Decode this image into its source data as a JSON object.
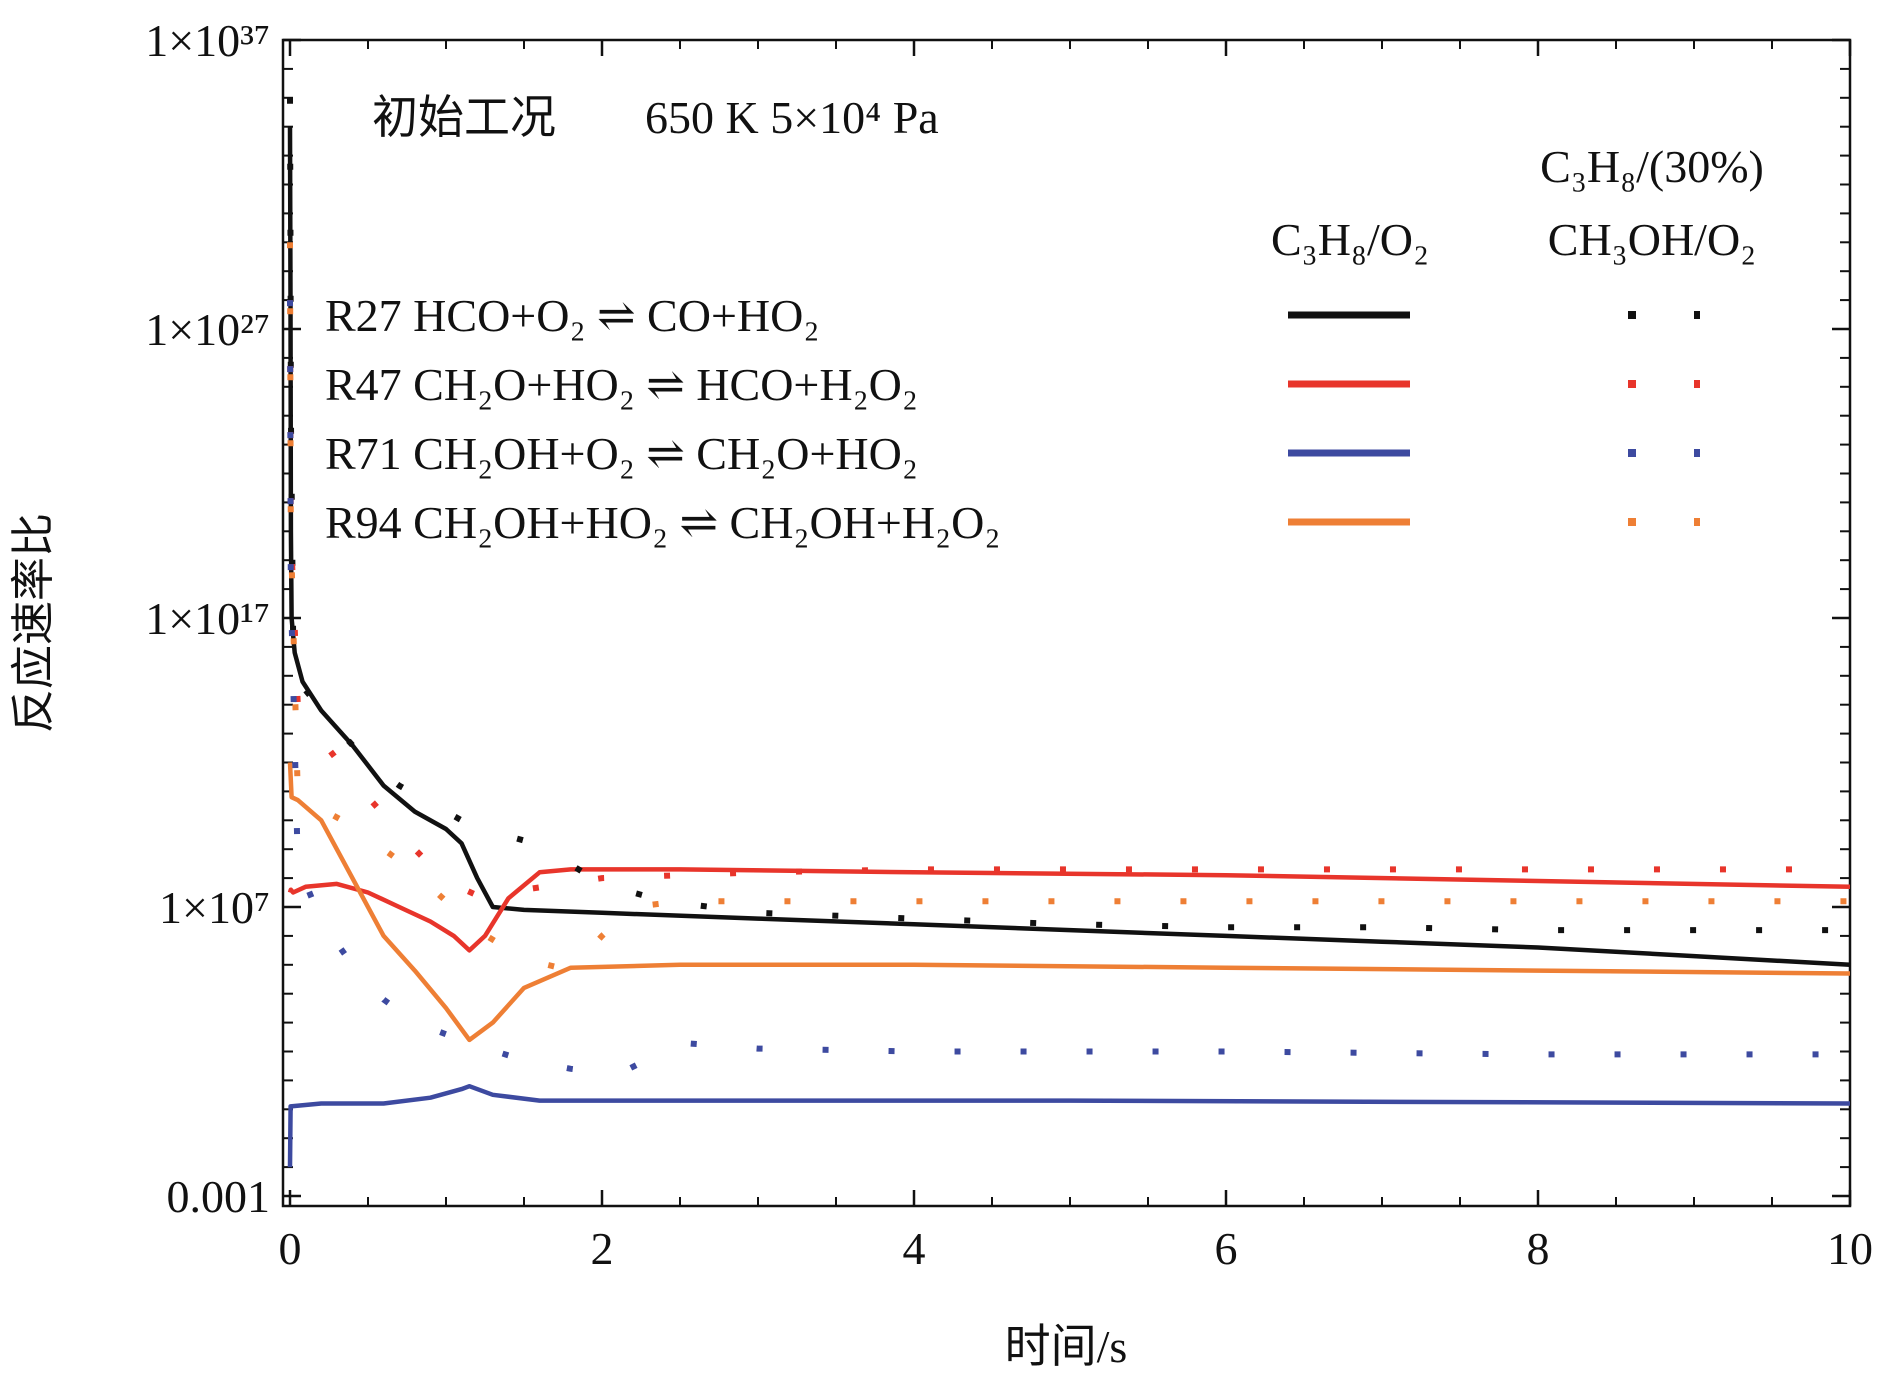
{
  "chart_data": {
    "type": "line",
    "title": "初始工况",
    "condition": "650 K  5×10⁴ Pa",
    "xlabel": "时间/s",
    "ylabel": "反应速率比",
    "xlim": [
      0,
      10
    ],
    "ylog10": [
      -3,
      37
    ],
    "xticks": [
      "0",
      "2",
      "4",
      "6",
      "8",
      "10"
    ],
    "yticks": [
      {
        "exp": 37,
        "label": "1×10³⁷"
      },
      {
        "exp": 27,
        "label": "1×10²⁷"
      },
      {
        "exp": 17,
        "label": "1×10¹⁷"
      },
      {
        "exp": 7,
        "label": "1×10⁷"
      },
      {
        "exp": -3,
        "label": "0.001"
      }
    ],
    "legend_header_a": "C₃H₈/O₂",
    "legend_header_b1": "C₃H₈/(30%)",
    "legend_header_b2": "CH₃OH/O₂",
    "reactions": [
      {
        "id": "R27",
        "label": "R27 HCO+O₂ ⇌ CO+HO₂",
        "color": "#111111"
      },
      {
        "id": "R47",
        "label": "R47 CH₂O+HO₂ ⇌ HCO+H₂O₂",
        "color": "#e8352b"
      },
      {
        "id": "R71",
        "label": "R71 CH₂OH+O₂ ⇌ CH₂O+HO₂",
        "color": "#3d4aa0"
      },
      {
        "id": "R94",
        "label": "R94 CH₂OH+HO₂ ⇌ CH₂OH+H₂O₂",
        "color": "#ee7f35"
      }
    ],
    "series": [
      {
        "name": "R27 C3H8/O2",
        "reaction": "R27",
        "style": "solid",
        "x": [
          0,
          0.003,
          0.006,
          0.01,
          0.03,
          0.08,
          0.2,
          0.4,
          0.6,
          0.8,
          1.0,
          1.1,
          1.2,
          1.3,
          1.5,
          2,
          3,
          4,
          5,
          6,
          7,
          8,
          9,
          10
        ],
        "y": [
          34,
          28,
          20,
          17,
          15.8,
          14.8,
          13.8,
          12.6,
          11.2,
          10.3,
          9.7,
          9.2,
          8.0,
          7.0,
          6.9,
          6.8,
          6.6,
          6.4,
          6.2,
          6.0,
          5.8,
          5.6,
          5.3,
          5.0
        ]
      },
      {
        "name": "R47 C3H8/O2",
        "reaction": "R47",
        "style": "solid",
        "x": [
          0,
          0.005,
          0.02,
          0.1,
          0.3,
          0.5,
          0.7,
          0.9,
          1.05,
          1.15,
          1.25,
          1.4,
          1.6,
          1.8,
          2.5,
          4,
          6,
          8,
          10
        ],
        "y": [
          7.5,
          7.6,
          7.5,
          7.7,
          7.8,
          7.5,
          7.0,
          6.5,
          6.0,
          5.5,
          6.0,
          7.3,
          8.2,
          8.3,
          8.3,
          8.2,
          8.1,
          7.9,
          7.7
        ]
      },
      {
        "name": "R71 C3H8/O2",
        "reaction": "R71",
        "style": "solid",
        "x": [
          0,
          0.004,
          0.2,
          0.6,
          0.9,
          1.1,
          1.15,
          1.3,
          1.6,
          2,
          5,
          10
        ],
        "y": [
          -2,
          0.1,
          0.2,
          0.2,
          0.4,
          0.7,
          0.8,
          0.5,
          0.3,
          0.3,
          0.3,
          0.2
        ]
      },
      {
        "name": "R94 C3H8/O2",
        "reaction": "R94",
        "style": "solid",
        "x": [
          0,
          0.01,
          0.05,
          0.2,
          0.4,
          0.6,
          0.8,
          1.0,
          1.15,
          1.3,
          1.5,
          1.8,
          2.5,
          4,
          6,
          8,
          10
        ],
        "y": [
          12,
          10.8,
          10.7,
          10.0,
          8.0,
          6.0,
          4.8,
          3.5,
          2.4,
          3.0,
          4.2,
          4.9,
          5.0,
          5.0,
          4.9,
          4.8,
          4.7
        ]
      },
      {
        "name": "R27 C3H8/(30%)CH3OH/O2",
        "reaction": "R27",
        "style": "dotted",
        "x": [
          0,
          0.003,
          0.006,
          0.02,
          0.1,
          0.3,
          0.5,
          0.7,
          0.9,
          1.1,
          1.3,
          1.5,
          1.7,
          2.0,
          2.4,
          3,
          4,
          5,
          6,
          7,
          8,
          9,
          10
        ],
        "y": [
          35,
          30,
          24,
          16.5,
          14.5,
          13.2,
          12.0,
          11.2,
          10.6,
          10.0,
          9.6,
          9.3,
          8.8,
          7.8,
          7.2,
          6.8,
          6.6,
          6.4,
          6.3,
          6.3,
          6.2,
          6.2,
          6.2
        ]
      },
      {
        "name": "R47 C3H8/(30%)CH3OH/O2",
        "reaction": "R47",
        "style": "dotted",
        "x": [
          0,
          0.005,
          0.05,
          0.2,
          0.4,
          0.6,
          0.8,
          1.0,
          1.2,
          1.5,
          2,
          3,
          4,
          6,
          8,
          10
        ],
        "y": [
          28,
          20,
          14.0,
          12.8,
          11.4,
          10.2,
          9.0,
          7.9,
          7.4,
          7.6,
          8.0,
          8.2,
          8.3,
          8.3,
          8.3,
          8.3
        ]
      },
      {
        "name": "R71 C3H8/(30%)CH3OH/O2",
        "reaction": "R71",
        "style": "dotted",
        "x": [
          0,
          0.005,
          0.05,
          0.2,
          0.4,
          0.6,
          0.8,
          1.0,
          1.2,
          1.5,
          1.8,
          2.1,
          2.5,
          3,
          4,
          6,
          8,
          10
        ],
        "y": [
          28,
          18,
          8.5,
          6.5,
          5.0,
          3.8,
          3.0,
          2.6,
          2.2,
          1.7,
          1.4,
          1.2,
          2.3,
          2.1,
          2.0,
          2.0,
          1.9,
          1.9
        ]
      },
      {
        "name": "R94 C3H8/(30%)CH3OH/O2",
        "reaction": "R94",
        "style": "dotted",
        "x": [
          0,
          0.005,
          0.05,
          0.2,
          0.4,
          0.6,
          0.8,
          1.0,
          1.2,
          1.5,
          1.8,
          2.0,
          2.2,
          2.5,
          3,
          5,
          8,
          10
        ],
        "y": [
          30,
          20,
          10.9,
          10.4,
          9.8,
          9.0,
          8.2,
          7.2,
          6.2,
          5.2,
          4.8,
          6.0,
          7.0,
          7.2,
          7.2,
          7.2,
          7.2,
          7.2
        ]
      }
    ]
  }
}
